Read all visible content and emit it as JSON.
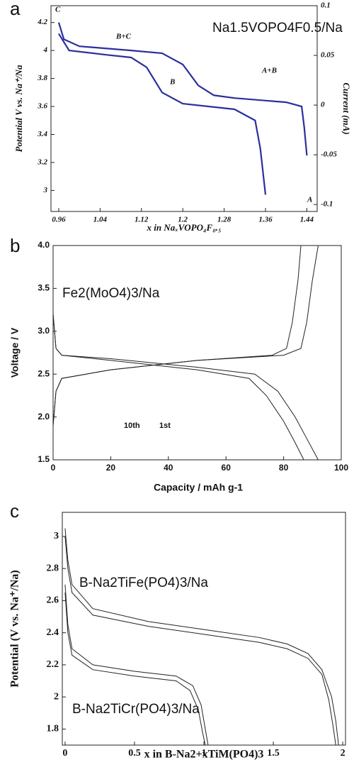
{
  "chart_data": [
    {
      "type": "line",
      "panel_label": "a",
      "title": "Na1.5VOPO4F0.5/Na",
      "x_label": "x in NaₓVOPO₄F₀.₅",
      "y_label": "Potential V vs. Na⁺/Na",
      "y2_label": "Current (mA)",
      "annotations": [
        "C",
        "B+C",
        "B",
        "A+B",
        "A"
      ],
      "xlim": [
        0.945,
        1.46
      ],
      "xticks": [
        0.96,
        1.04,
        1.12,
        1.2,
        1.28,
        1.36,
        1.44
      ],
      "ylim": [
        2.85,
        4.32
      ],
      "yticks": [
        3,
        3.2,
        3.4,
        3.6,
        3.8,
        4,
        4.2
      ],
      "y2lim": [
        -0.107,
        0.1
      ],
      "y2ticks": [
        -0.1,
        -0.05,
        0,
        0.05,
        0.1
      ],
      "series": [
        {
          "color": "#2b2f9e",
          "x": [
            0.96,
            0.97,
            1.0,
            1.1,
            1.16,
            1.2,
            1.23,
            1.26,
            1.3,
            1.4,
            1.43,
            1.435,
            1.44
          ],
          "values": [
            4.2,
            4.08,
            4.03,
            4.0,
            3.98,
            3.9,
            3.75,
            3.68,
            3.66,
            3.63,
            3.6,
            3.45,
            3.25
          ]
        },
        {
          "color": "#2b2f9e",
          "x": [
            0.96,
            0.98,
            1.05,
            1.1,
            1.13,
            1.16,
            1.2,
            1.3,
            1.34,
            1.35,
            1.36
          ],
          "values": [
            4.12,
            4.0,
            3.97,
            3.95,
            3.88,
            3.7,
            3.62,
            3.58,
            3.5,
            3.3,
            2.97
          ]
        }
      ]
    },
    {
      "type": "line",
      "panel_label": "b",
      "title": "Fe2(MoO4)3/Na",
      "x_label": "Capacity / mAh g-1",
      "y_label": "Voltage / V",
      "annotations": [
        "10th",
        "1st"
      ],
      "xlim": [
        0,
        100
      ],
      "xticks": [
        0,
        20,
        40,
        60,
        80,
        100
      ],
      "ylim": [
        1.5,
        4.0
      ],
      "yticks": [
        {
          "value": 1.5,
          "label": "1.5"
        },
        {
          "value": 2.0,
          "label": "2.0"
        },
        {
          "value": 2.5,
          "label": "2.5"
        },
        {
          "value": 3.0,
          "label": "3.0"
        },
        {
          "value": 3.5,
          "label": "3.5"
        },
        {
          "value": 4.0,
          "label": "4.0"
        }
      ],
      "series": [
        {
          "color": "#222",
          "x": [
            0,
            1,
            3,
            20,
            50,
            70,
            78,
            84,
            88,
            92
          ],
          "values": [
            3.2,
            2.8,
            2.72,
            2.68,
            2.58,
            2.5,
            2.3,
            2.0,
            1.75,
            1.5
          ]
        },
        {
          "color": "#222",
          "x": [
            0,
            1,
            3,
            20,
            50,
            68,
            74,
            80,
            84,
            87
          ],
          "values": [
            3.2,
            2.8,
            2.72,
            2.66,
            2.55,
            2.45,
            2.25,
            1.95,
            1.7,
            1.5
          ]
        },
        {
          "color": "#222",
          "x": [
            0,
            1,
            3,
            20,
            50,
            80,
            86,
            88,
            90,
            92
          ],
          "values": [
            1.9,
            2.3,
            2.45,
            2.55,
            2.66,
            2.72,
            2.8,
            3.1,
            3.6,
            4.0
          ]
        },
        {
          "color": "#222",
          "x": [
            0,
            1,
            3,
            20,
            50,
            76,
            81,
            83,
            85,
            86
          ],
          "values": [
            1.9,
            2.3,
            2.45,
            2.55,
            2.66,
            2.72,
            2.8,
            3.1,
            3.6,
            4.0
          ]
        }
      ]
    },
    {
      "type": "line",
      "panel_label": "c",
      "title": "B-Na2TiFe(PO4)3/Na",
      "subtitle": "B-Na2TiCr(PO4)3/Na",
      "x_label": "x in B-Na2+xTiM(PO4)3",
      "y_label": "Potential (V vs. Na⁺/Na)",
      "xlim": [
        -0.02,
        2.02
      ],
      "xticks": [
        0,
        0.5,
        1,
        1.5,
        2
      ],
      "ylim": [
        1.7,
        3.15
      ],
      "yticks": [
        1.8,
        2,
        2.2,
        2.4,
        2.6,
        2.8,
        3
      ],
      "series": [
        {
          "color": "#222",
          "x": [
            0,
            0.02,
            0.05,
            0.2,
            0.6,
            1.0,
            1.4,
            1.6,
            1.75,
            1.85,
            1.92,
            1.95,
            1.97
          ],
          "values": [
            3.05,
            2.85,
            2.7,
            2.55,
            2.47,
            2.42,
            2.37,
            2.33,
            2.27,
            2.17,
            2.0,
            1.85,
            1.7
          ]
        },
        {
          "color": "#222",
          "x": [
            0,
            0.02,
            0.05,
            0.2,
            0.6,
            1.0,
            1.4,
            1.6,
            1.75,
            1.85,
            1.9,
            1.93,
            1.95
          ],
          "values": [
            3.0,
            2.8,
            2.65,
            2.51,
            2.44,
            2.39,
            2.34,
            2.3,
            2.24,
            2.14,
            1.98,
            1.82,
            1.7
          ]
        },
        {
          "color": "#222",
          "x": [
            0,
            0.02,
            0.05,
            0.2,
            0.5,
            0.8,
            0.92,
            0.98,
            1.01,
            1.03
          ],
          "values": [
            2.7,
            2.45,
            2.3,
            2.2,
            2.16,
            2.13,
            2.07,
            1.95,
            1.8,
            1.7
          ]
        },
        {
          "color": "#222",
          "x": [
            0,
            0.02,
            0.05,
            0.2,
            0.5,
            0.8,
            0.9,
            0.96,
            0.99,
            1.01
          ],
          "values": [
            2.65,
            2.4,
            2.26,
            2.17,
            2.13,
            2.1,
            2.04,
            1.92,
            1.78,
            1.7
          ]
        }
      ]
    }
  ]
}
